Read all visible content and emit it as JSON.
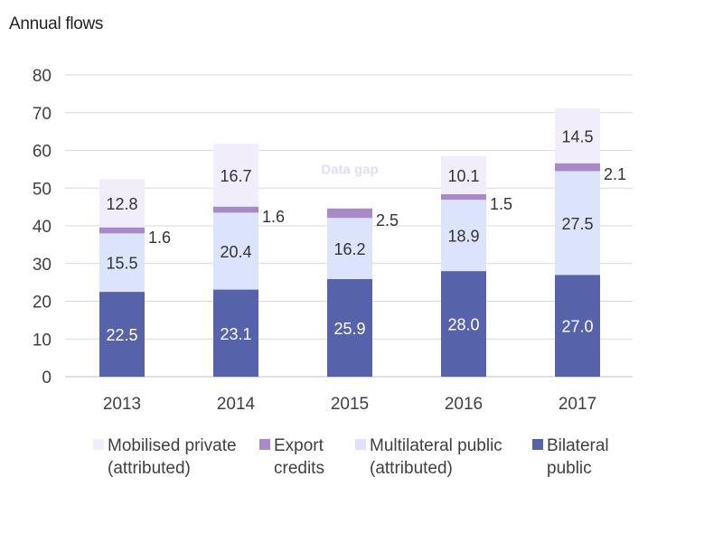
{
  "chart_data": {
    "type": "bar",
    "stacked": true,
    "title": "Annual flows",
    "xlabel": "",
    "ylabel": "",
    "ylim": [
      0,
      80
    ],
    "yticks": [
      0,
      10,
      20,
      30,
      40,
      50,
      60,
      70,
      80
    ],
    "grid": true,
    "legend_position": "bottom",
    "categories": [
      "2013",
      "2014",
      "2015",
      "2016",
      "2017"
    ],
    "series": [
      {
        "name": "Bilateral public",
        "legend_lines": [
          "Bilateral",
          "public"
        ],
        "color": "#5663aa",
        "label_color": "#ffffff",
        "values": [
          22.5,
          23.1,
          25.9,
          28.0,
          27.0
        ],
        "labels": [
          "22.5",
          "23.1",
          "25.9",
          "28.0",
          "27.0"
        ]
      },
      {
        "name": "Multilateral public (attributed)",
        "legend_lines": [
          "Multilateral public",
          "(attributed)"
        ],
        "color": "#dce4fb",
        "label_color": "#333333",
        "values": [
          15.5,
          20.4,
          16.2,
          18.9,
          27.5
        ],
        "labels": [
          "15.5",
          "20.4",
          "16.2",
          "18.9",
          "27.5"
        ]
      },
      {
        "name": "Export credits",
        "legend_lines": [
          "Export",
          "credits"
        ],
        "color": "#a98ac9",
        "label_color": "#333333",
        "values": [
          1.6,
          1.6,
          2.5,
          1.5,
          2.1
        ],
        "labels": [
          "1.6",
          "1.6",
          "2.5",
          "1.5",
          "2.1"
        ]
      },
      {
        "name": "Mobilised private (attributed)",
        "legend_lines": [
          "Mobilised private",
          "(attributed)"
        ],
        "color": "#f1edfb",
        "label_color": "#333333",
        "values": [
          12.8,
          16.7,
          null,
          10.1,
          14.5
        ],
        "labels": [
          "12.8",
          "16.7",
          "",
          "10.1",
          "14.5"
        ]
      }
    ],
    "legend_order": [
      3,
      2,
      1,
      0
    ],
    "annotations": [
      {
        "text": "Data gap",
        "category": "2015",
        "y": 55,
        "color": "#e4dcf6"
      }
    ],
    "grid_color": "#d9d9d9",
    "axis_color": "#bfbfbf"
  }
}
